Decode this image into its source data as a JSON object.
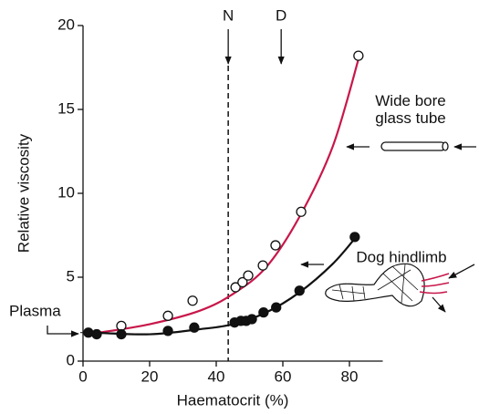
{
  "chart_data": {
    "type": "scatter",
    "x_label": "Haematocrit (%)",
    "y_label": "Relative viscosity",
    "xlim": [
      0,
      90
    ],
    "ylim": [
      0,
      20
    ],
    "xticks": [
      0,
      20,
      40,
      60,
      80
    ],
    "yticks": [
      0,
      5,
      10,
      15,
      20
    ],
    "series": [
      {
        "name": "Wide bore glass tube",
        "color": "#c8174a",
        "marker": "open",
        "x": [
          11.5,
          25.5,
          32.9,
          45.8,
          47.9,
          49.6,
          54.0,
          57.8,
          65.5,
          82.7
        ],
        "values": [
          2.1,
          2.7,
          3.6,
          4.4,
          4.7,
          5.1,
          5.7,
          6.9,
          8.9,
          18.2
        ],
        "curve_x": [
          5,
          20,
          35,
          45,
          55,
          65,
          75,
          83
        ],
        "curve_values": [
          1.7,
          2.2,
          3.0,
          4.0,
          5.6,
          8.6,
          12.8,
          18.2
        ]
      },
      {
        "name": "Dog hindlimb",
        "color": "#111111",
        "marker": "filled",
        "x": [
          1.6,
          4.1,
          11.5,
          25.5,
          33.4,
          45.5,
          47.4,
          49.0,
          50.7,
          54.2,
          58.0,
          65.0,
          81.6
        ],
        "values": [
          1.7,
          1.6,
          1.6,
          1.8,
          2.0,
          2.3,
          2.4,
          2.4,
          2.5,
          2.9,
          3.2,
          4.2,
          7.4
        ],
        "curve_x": [
          3,
          20,
          35,
          45,
          55,
          65,
          75,
          82
        ],
        "curve_values": [
          1.7,
          1.6,
          1.9,
          2.2,
          2.9,
          4.1,
          5.8,
          7.4
        ]
      }
    ],
    "markers": [
      {
        "text": "N",
        "x": 43.6,
        "dashed": true
      },
      {
        "text": "D",
        "x": 59.5,
        "dashed": false
      }
    ],
    "plasma": {
      "text": "Plasma",
      "y": 1.7
    }
  }
}
